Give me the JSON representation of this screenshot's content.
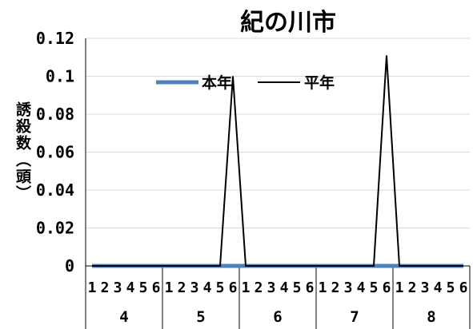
{
  "chart_data": {
    "type": "line",
    "title": "紀の川市",
    "ylabel": "誘殺数（頭）",
    "xlabel": "",
    "ylim": [
      0,
      0.12
    ],
    "yticks": [
      0,
      0.02,
      0.04,
      0.06,
      0.08,
      0.1,
      0.12
    ],
    "ytick_labels": [
      "0",
      "0.02",
      "0.04",
      "0.06",
      "0.08",
      "0.1",
      "0.12"
    ],
    "months": [
      "4",
      "5",
      "6",
      "7",
      "8"
    ],
    "periods": [
      "1",
      "2",
      "3",
      "4",
      "5",
      "6"
    ],
    "grid": "horizontal",
    "legend_position": "top-center",
    "series": [
      {
        "name": "本年",
        "color": "#4f81bd",
        "values": [
          0,
          0,
          0,
          0,
          0,
          0,
          0,
          0,
          0,
          0,
          0,
          0,
          0,
          0,
          0,
          0,
          0,
          0,
          0,
          0,
          0,
          0,
          0,
          0,
          0,
          0,
          0,
          0,
          0,
          0
        ]
      },
      {
        "name": "平年",
        "color": "#000000",
        "values": [
          0,
          0,
          0,
          0,
          0,
          0,
          0,
          0,
          0,
          0,
          0,
          0.1,
          0,
          0,
          0,
          0,
          0,
          0,
          0,
          0,
          0,
          0,
          0,
          0.111,
          0,
          0,
          0,
          0,
          0,
          0
        ]
      }
    ]
  }
}
